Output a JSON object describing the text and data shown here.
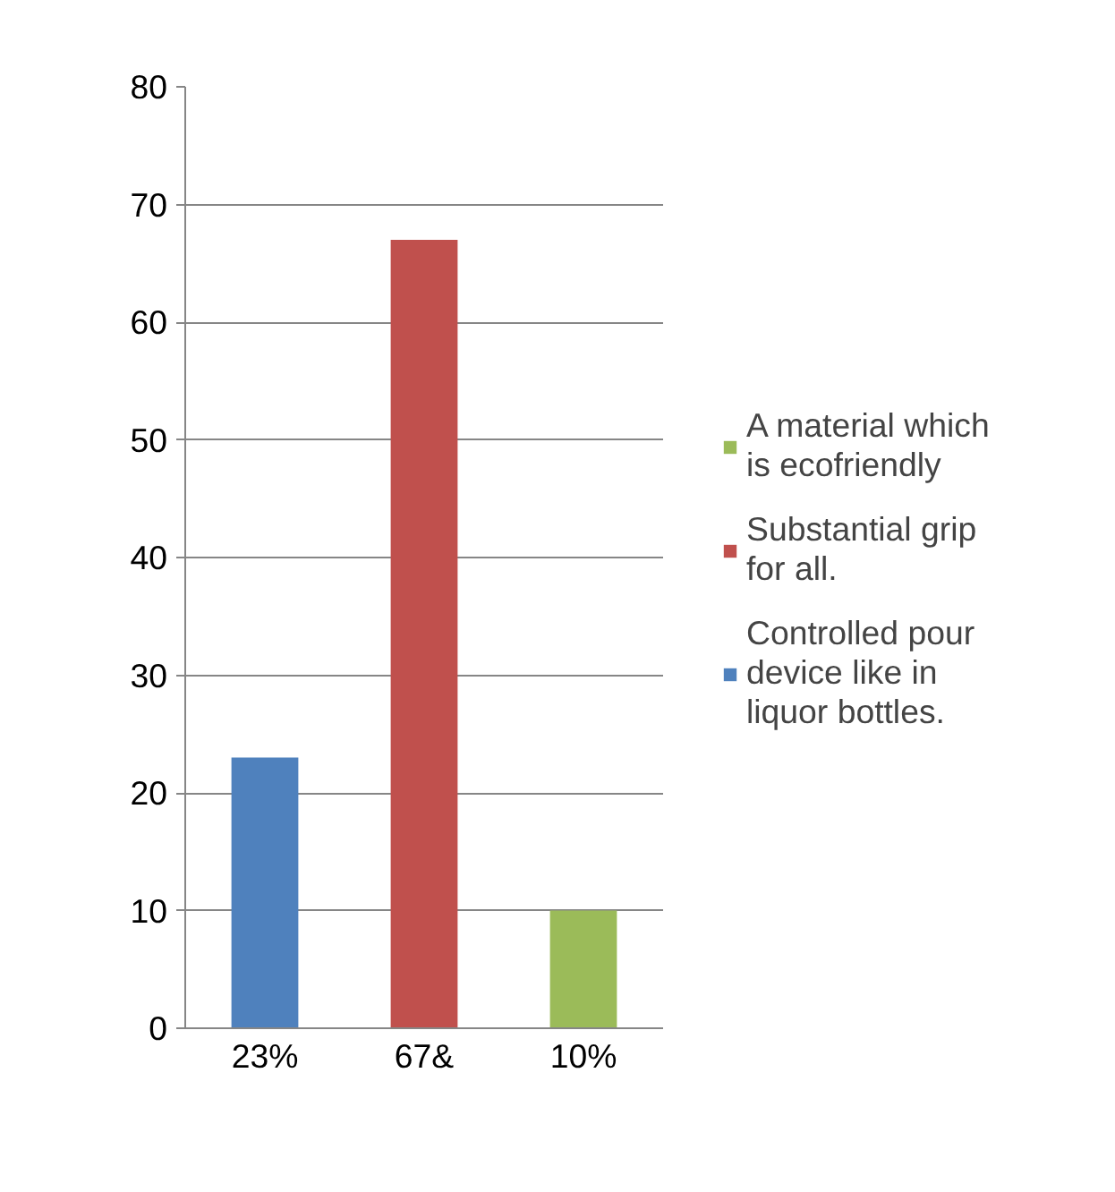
{
  "chart_data": {
    "type": "bar",
    "categories": [
      "23%",
      "67&",
      "10%"
    ],
    "series": [
      {
        "name": "Controlled pour device like in liquor bottles.",
        "color": "#4f81bd",
        "values": [
          23,
          null,
          null
        ]
      },
      {
        "name": "Substantial grip for all.",
        "color": "#c0504d",
        "values": [
          null,
          67,
          null
        ]
      },
      {
        "name": "A material which is ecofriendly",
        "color": "#9bbb59",
        "values": [
          null,
          null,
          10
        ]
      }
    ],
    "ylim": [
      0,
      80
    ],
    "yticks": [
      0,
      10,
      20,
      30,
      40,
      50,
      60,
      70,
      80
    ],
    "grid": "y",
    "legend": "right"
  }
}
